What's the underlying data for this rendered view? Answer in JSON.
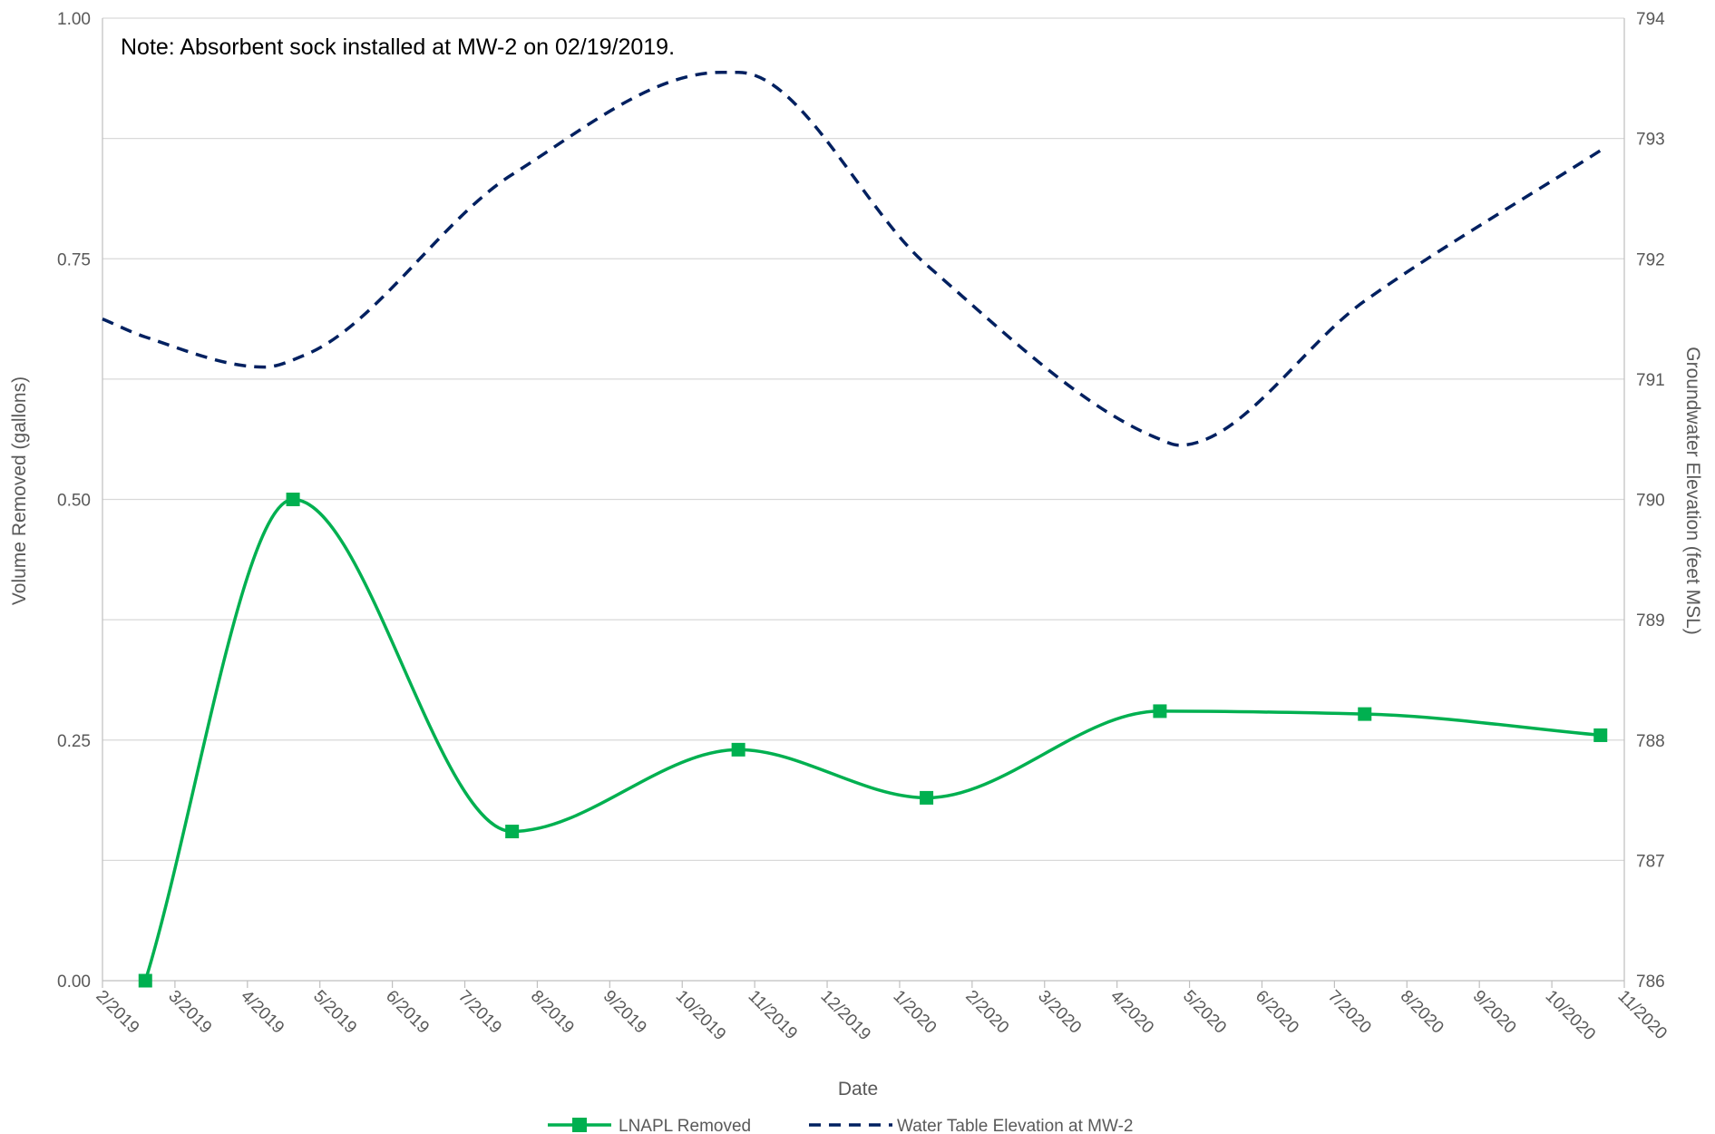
{
  "chart_data": {
    "type": "line",
    "note": "Note: Absorbent sock installed at MW-2 on 02/19/2019.",
    "xlabel": "Date",
    "ylabel_left": "Volume Removed (gallons)",
    "ylabel_right": "Groundwater Elevation (feet MSL)",
    "x_ticks": [
      "2/2019",
      "3/2019",
      "4/2019",
      "5/2019",
      "6/2019",
      "7/2019",
      "8/2019",
      "9/2019",
      "10/2019",
      "11/2019",
      "12/2019",
      "1/2020",
      "2/2020",
      "3/2020",
      "4/2020",
      "5/2020",
      "6/2020",
      "7/2020",
      "8/2020",
      "9/2020",
      "10/2020",
      "11/2020"
    ],
    "x_range": [
      "2019-02-01",
      "2020-11-01"
    ],
    "y_left_ticks": [
      "0.00",
      "0.25",
      "0.50",
      "0.75",
      "1.00"
    ],
    "y_left_range": [
      0,
      1
    ],
    "y_right_ticks": [
      "786",
      "787",
      "788",
      "789",
      "790",
      "791",
      "792",
      "793",
      "794"
    ],
    "y_right_range": [
      786,
      794
    ],
    "grid": true,
    "legend_position": "bottom",
    "series": [
      {
        "name": "LNAPL Removed",
        "axis": "left",
        "color": "#00b050",
        "style": "solid",
        "marker": "square",
        "points": [
          {
            "x": "2019-02-19",
            "y": 0.0
          },
          {
            "x": "2019-04-22",
            "y": 0.5
          },
          {
            "x": "2019-07-23",
            "y": 0.155
          },
          {
            "x": "2019-10-26",
            "y": 0.24
          },
          {
            "x": "2020-01-13",
            "y": 0.19
          },
          {
            "x": "2020-04-20",
            "y": 0.28
          },
          {
            "x": "2020-07-15",
            "y": 0.277
          },
          {
            "x": "2020-10-22",
            "y": 0.255
          }
        ]
      },
      {
        "name": "Water Table Elevation at MW-2",
        "axis": "right",
        "color": "#002060",
        "style": "dashed",
        "marker": "none",
        "points": [
          {
            "x": "2019-02-01",
            "y": 791.5
          },
          {
            "x": "2019-02-19",
            "y": 791.35
          },
          {
            "x": "2019-04-10",
            "y": 791.1
          },
          {
            "x": "2019-04-27",
            "y": 791.2
          },
          {
            "x": "2019-07-23",
            "y": 792.7
          },
          {
            "x": "2019-10-19",
            "y": 793.55
          },
          {
            "x": "2019-10-26",
            "y": 793.55
          },
          {
            "x": "2020-01-13",
            "y": 791.95
          },
          {
            "x": "2020-04-20",
            "y": 790.5
          },
          {
            "x": "2020-04-28",
            "y": 790.45
          },
          {
            "x": "2020-07-15",
            "y": 791.65
          },
          {
            "x": "2020-10-22",
            "y": 792.9
          }
        ]
      }
    ]
  }
}
